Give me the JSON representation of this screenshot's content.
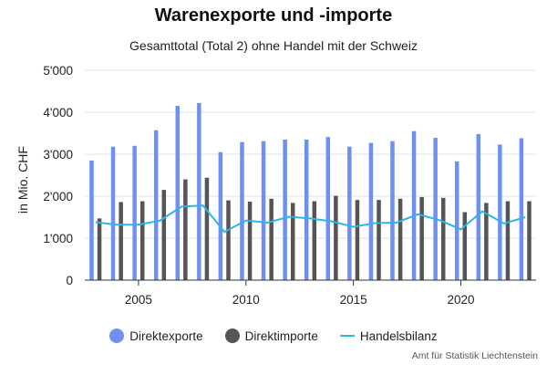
{
  "chart_data": {
    "type": "bar",
    "title": "Warenexporte und -importe",
    "subtitle": "Gesamttotal (Total 2) ohne Handel mit der Schweiz",
    "ylabel": "in Mio. CHF",
    "ylim": [
      0,
      5000
    ],
    "yticks": [
      "0",
      "1'000",
      "2'000",
      "3'000",
      "4'000",
      "5'000"
    ],
    "ytick_values": [
      0,
      1000,
      2000,
      3000,
      4000,
      5000
    ],
    "xticks": [
      "2005",
      "2010",
      "2015",
      "2020"
    ],
    "xtick_values": [
      2005,
      2010,
      2015,
      2020
    ],
    "x": [
      2003,
      2004,
      2005,
      2006,
      2007,
      2008,
      2009,
      2010,
      2011,
      2012,
      2013,
      2014,
      2015,
      2016,
      2017,
      2018,
      2019,
      2020,
      2021,
      2022,
      2023
    ],
    "series": [
      {
        "name": "Direktexporte",
        "type": "bar",
        "color": "#6f8ff2",
        "values": [
          2850,
          3180,
          3200,
          3570,
          4150,
          4220,
          3050,
          3290,
          3310,
          3350,
          3350,
          3410,
          3180,
          3270,
          3310,
          3550,
          3390,
          2830,
          3480,
          3230,
          3380
        ]
      },
      {
        "name": "Direktimporte",
        "type": "bar",
        "color": "#555555",
        "values": [
          1470,
          1860,
          1880,
          2150,
          2400,
          2440,
          1900,
          1870,
          1940,
          1840,
          1880,
          2010,
          1910,
          1910,
          1940,
          1980,
          1960,
          1620,
          1840,
          1880,
          1880
        ]
      },
      {
        "name": "Handelsbilanz",
        "type": "line",
        "color": "#2fb4e8",
        "values": [
          1380,
          1320,
          1320,
          1420,
          1750,
          1780,
          1150,
          1420,
          1370,
          1510,
          1470,
          1400,
          1270,
          1360,
          1370,
          1570,
          1430,
          1210,
          1640,
          1350,
          1500
        ]
      }
    ],
    "legend_position": "bottom",
    "grid": true
  },
  "credits": "Amt für Statistik Liechtenstein"
}
